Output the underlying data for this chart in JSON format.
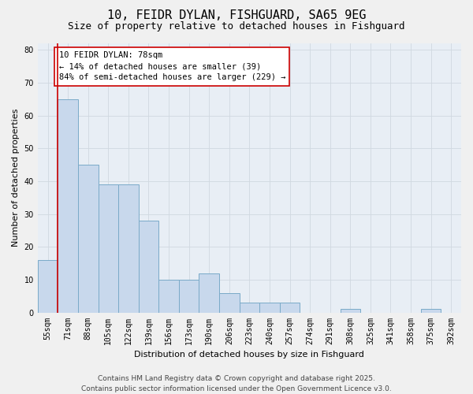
{
  "title_line1": "10, FEIDR DYLAN, FISHGUARD, SA65 9EG",
  "title_line2": "Size of property relative to detached houses in Fishguard",
  "xlabel": "Distribution of detached houses by size in Fishguard",
  "ylabel": "Number of detached properties",
  "categories": [
    "55sqm",
    "71sqm",
    "88sqm",
    "105sqm",
    "122sqm",
    "139sqm",
    "156sqm",
    "173sqm",
    "190sqm",
    "206sqm",
    "223sqm",
    "240sqm",
    "257sqm",
    "274sqm",
    "291sqm",
    "308sqm",
    "325sqm",
    "341sqm",
    "358sqm",
    "375sqm",
    "392sqm"
  ],
  "values": [
    16,
    65,
    45,
    39,
    39,
    28,
    10,
    10,
    12,
    6,
    3,
    3,
    3,
    0,
    0,
    1,
    0,
    0,
    0,
    1,
    0
  ],
  "bar_color": "#c8d8ec",
  "bar_edge_color": "#7aaac8",
  "highlight_line_color": "#cc0000",
  "annotation_text": "10 FEIDR DYLAN: 78sqm\n← 14% of detached houses are smaller (39)\n84% of semi-detached houses are larger (229) →",
  "annotation_box_color": "#ffffff",
  "annotation_box_edge": "#cc0000",
  "ylim": [
    0,
    82
  ],
  "yticks": [
    0,
    10,
    20,
    30,
    40,
    50,
    60,
    70,
    80
  ],
  "grid_color": "#d0d8e0",
  "bg_color": "#e8eef5",
  "fig_bg_color": "#f0f0f0",
  "footer_line1": "Contains HM Land Registry data © Crown copyright and database right 2025.",
  "footer_line2": "Contains public sector information licensed under the Open Government Licence v3.0.",
  "title_fontsize": 11,
  "subtitle_fontsize": 9,
  "axis_label_fontsize": 8,
  "tick_fontsize": 7,
  "annotation_fontsize": 7.5,
  "footer_fontsize": 6.5
}
